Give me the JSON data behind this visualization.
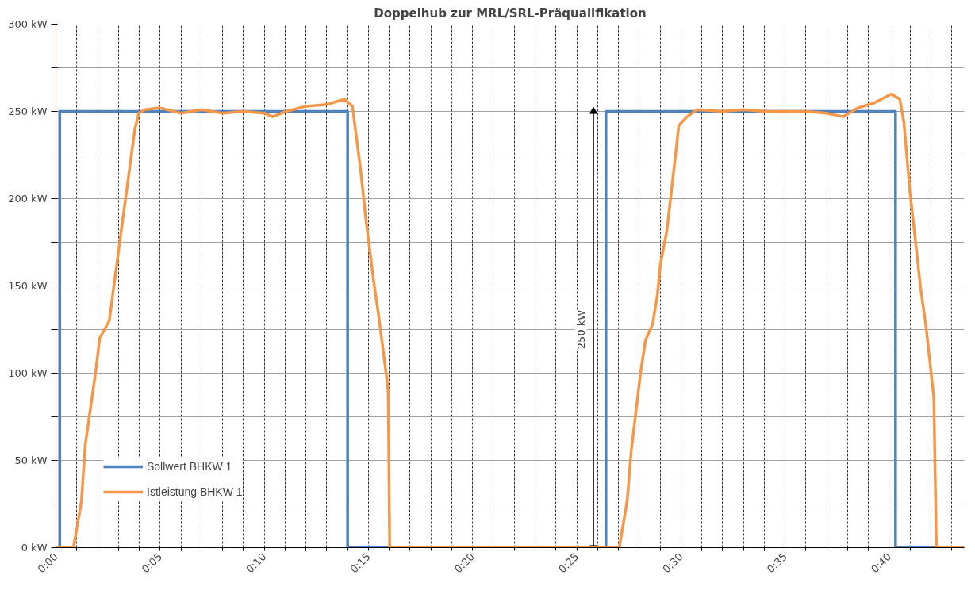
{
  "chart_data": {
    "type": "line",
    "title": "Doppelhub zur MRL/SRL-Präqualifikation",
    "xlim": [
      0,
      43.6
    ],
    "ylim": [
      0,
      300
    ],
    "xticks": [
      {
        "value": 0,
        "label": "0:00"
      },
      {
        "value": 1,
        "label": null
      },
      {
        "value": 2,
        "label": null
      },
      {
        "value": 3,
        "label": null
      },
      {
        "value": 4,
        "label": null
      },
      {
        "value": 5,
        "label": "0:05"
      },
      {
        "value": 6,
        "label": null
      },
      {
        "value": 7,
        "label": null
      },
      {
        "value": 8,
        "label": null
      },
      {
        "value": 9,
        "label": null
      },
      {
        "value": 10,
        "label": "0:10"
      },
      {
        "value": 11,
        "label": null
      },
      {
        "value": 12,
        "label": null
      },
      {
        "value": 13,
        "label": null
      },
      {
        "value": 14,
        "label": null
      },
      {
        "value": 15,
        "label": "0:15"
      },
      {
        "value": 16,
        "label": null
      },
      {
        "value": 17,
        "label": null
      },
      {
        "value": 18,
        "label": null
      },
      {
        "value": 19,
        "label": null
      },
      {
        "value": 20,
        "label": "0:20"
      },
      {
        "value": 21,
        "label": null
      },
      {
        "value": 22,
        "label": null
      },
      {
        "value": 23,
        "label": null
      },
      {
        "value": 24,
        "label": null
      },
      {
        "value": 25,
        "label": "0:25"
      },
      {
        "value": 26,
        "label": null
      },
      {
        "value": 27,
        "label": null
      },
      {
        "value": 28,
        "label": null
      },
      {
        "value": 29,
        "label": null
      },
      {
        "value": 30,
        "label": "0:30"
      },
      {
        "value": 31,
        "label": null
      },
      {
        "value": 32,
        "label": null
      },
      {
        "value": 33,
        "label": null
      },
      {
        "value": 34,
        "label": null
      },
      {
        "value": 35,
        "label": "0:35"
      },
      {
        "value": 36,
        "label": null
      },
      {
        "value": 37,
        "label": null
      },
      {
        "value": 38,
        "label": null
      },
      {
        "value": 39,
        "label": null
      },
      {
        "value": 40,
        "label": "0:40"
      },
      {
        "value": 41,
        "label": null
      },
      {
        "value": 42,
        "label": null
      },
      {
        "value": 43,
        "label": null
      }
    ],
    "yticks": [
      {
        "value": 0,
        "label": "0 kW"
      },
      {
        "value": 25,
        "label": null
      },
      {
        "value": 50,
        "label": "50 kW"
      },
      {
        "value": 75,
        "label": null
      },
      {
        "value": 100,
        "label": "100 kW"
      },
      {
        "value": 125,
        "label": null
      },
      {
        "value": 150,
        "label": "150 kW"
      },
      {
        "value": 175,
        "label": null
      },
      {
        "value": 200,
        "label": "200 kW"
      },
      {
        "value": 225,
        "label": null
      },
      {
        "value": 250,
        "label": "250 kW"
      },
      {
        "value": 275,
        "label": null
      },
      {
        "value": 300,
        "label": "300 kW"
      }
    ],
    "grid": true,
    "legend": "bottom left",
    "marker": "none",
    "line_style": "solid",
    "annotations": [
      "250 kW"
    ],
    "series": [
      {
        "name": "Sollwert BHKW 1",
        "color": "#4f81bd",
        "x": [
          0,
          0.18,
          0.18,
          14.0,
          14.0,
          26.4,
          26.4,
          40.3,
          40.3,
          43.6
        ],
        "values": [
          0,
          0,
          250,
          250,
          0,
          0,
          250,
          250,
          0,
          0
        ]
      },
      {
        "type": "line",
        "marker": "triangle",
        "color": "#000000",
        "x": [
          25.8,
          25.8
        ],
        "values": [
          0,
          250
        ]
      },
      {
        "name": "Istleistung BHKW 1",
        "color": "#f79646",
        "x": [
          0,
          0.84,
          1.22,
          1.41,
          1.91,
          2.1,
          2.56,
          2.75,
          3.14,
          3.79,
          3.98,
          4.28,
          5,
          6,
          7,
          8,
          9,
          10,
          10.4,
          11.05,
          12,
          13,
          13.84,
          14.23,
          14.61,
          14.88,
          15.26,
          15.49,
          15.87,
          15.95,
          16.02,
          27.04,
          27.42,
          27.61,
          27.88,
          28.07,
          28.3,
          28.64,
          28.87,
          29.02,
          29.33,
          29.9,
          30.29,
          30.78,
          32,
          33,
          34,
          35,
          36,
          37,
          37.8,
          38.5,
          39.3,
          40.1,
          40.5,
          40.7,
          41.0,
          41.2,
          41.5,
          41.76,
          42.14,
          42.26,
          43.6
        ],
        "values": [
          0,
          0,
          26,
          59,
          101,
          120,
          130,
          147,
          182,
          240,
          249,
          251,
          252,
          249,
          251,
          249,
          250,
          249,
          247,
          250,
          253,
          254,
          257,
          253,
          218,
          188,
          152,
          133,
          98,
          89,
          0,
          0,
          27,
          55,
          82,
          101,
          119,
          128,
          145,
          163,
          182,
          242,
          247,
          251,
          250,
          251,
          250,
          250,
          250,
          249,
          247,
          252,
          255,
          260,
          257,
          244,
          203,
          182,
          149,
          127,
          86,
          0,
          0
        ]
      }
    ]
  }
}
